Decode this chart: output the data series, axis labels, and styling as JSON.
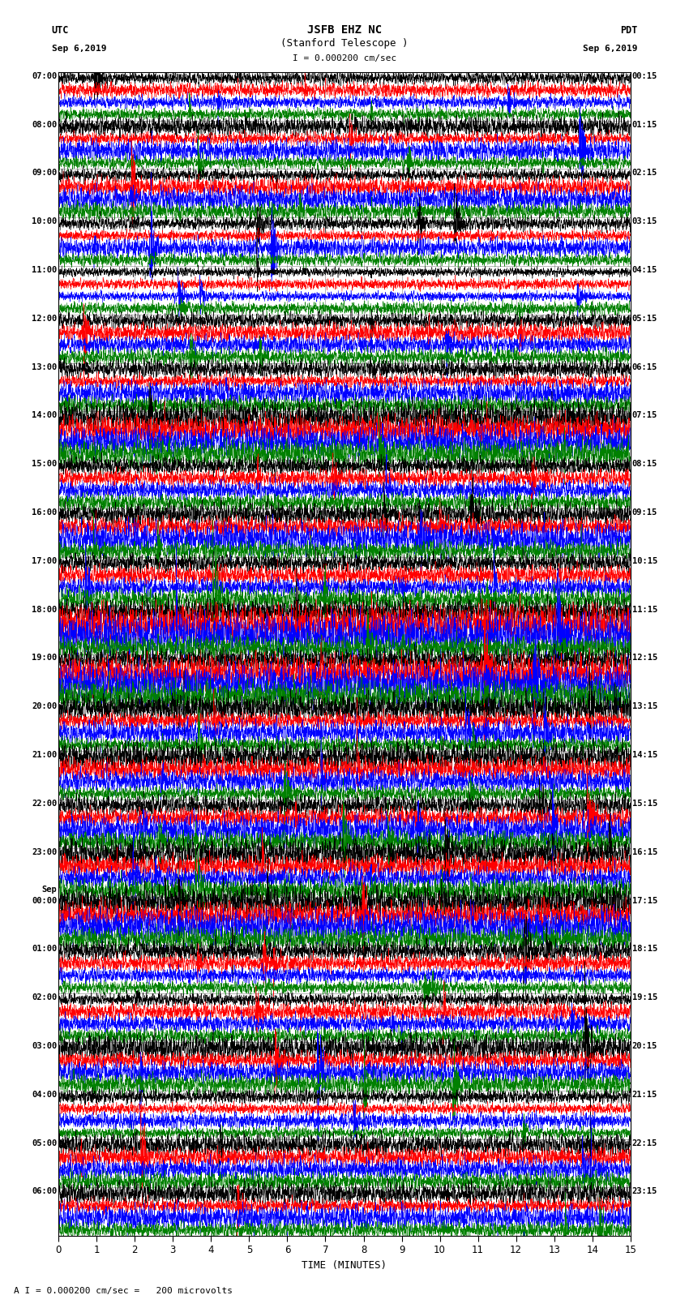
{
  "title_line1": "JSFB EHZ NC",
  "title_line2": "(Stanford Telescope )",
  "scale_text": "I = 0.000200 cm/sec",
  "left_header_line1": "UTC",
  "left_header_line2": "Sep 6,2019",
  "right_header_line1": "PDT",
  "right_header_line2": "Sep 6,2019",
  "left_times": [
    "07:00",
    "08:00",
    "09:00",
    "10:00",
    "11:00",
    "12:00",
    "13:00",
    "14:00",
    "15:00",
    "16:00",
    "17:00",
    "18:00",
    "19:00",
    "20:00",
    "21:00",
    "22:00",
    "23:00",
    "Sep",
    "00:00",
    "01:00",
    "02:00",
    "03:00",
    "04:00",
    "05:00",
    "06:00"
  ],
  "right_times": [
    "00:15",
    "01:15",
    "02:15",
    "03:15",
    "04:15",
    "05:15",
    "06:15",
    "07:15",
    "08:15",
    "09:15",
    "10:15",
    "11:15",
    "12:15",
    "13:15",
    "14:15",
    "15:15",
    "16:15",
    "17:15",
    "18:15",
    "19:15",
    "20:15",
    "21:15",
    "22:15",
    "23:15"
  ],
  "n_rows": 24,
  "traces_per_row": 4,
  "trace_colors": [
    "black",
    "red",
    "blue",
    "green"
  ],
  "xlabel": "TIME (MINUTES)",
  "xticks": [
    0,
    1,
    2,
    3,
    4,
    5,
    6,
    7,
    8,
    9,
    10,
    11,
    12,
    13,
    14,
    15
  ],
  "scale_note": "A I = 0.000200 cm/sec =   200 microvolts",
  "fig_width": 8.5,
  "fig_height": 16.13,
  "bg_color": "#ffffff",
  "duration": 15.0,
  "sample_rate": 300
}
